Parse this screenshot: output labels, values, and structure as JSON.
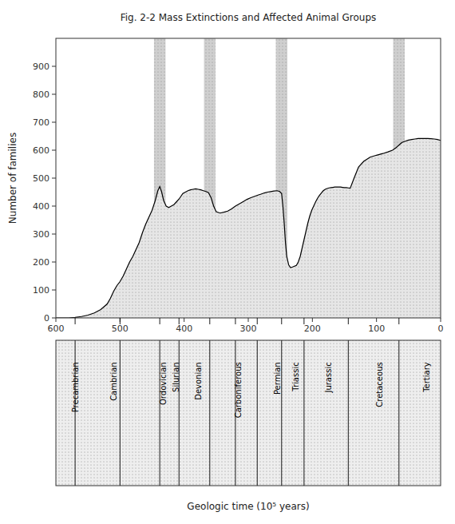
{
  "chart_data": {
    "type": "area",
    "title": "Fig. 2-2 Mass Extinctions and Affected Animal Groups",
    "x_label": "Geologic time (10⁵ years)",
    "y_label": "Number of families",
    "xlim": [
      600,
      0
    ],
    "ylim": [
      0,
      1000
    ],
    "yticks": [
      0,
      100,
      200,
      300,
      400,
      500,
      600,
      700,
      800,
      900
    ],
    "xticks": [
      600,
      500,
      400,
      300,
      200,
      100,
      0
    ],
    "color": "#000000",
    "x": [
      600,
      590,
      580,
      570,
      560,
      550,
      540,
      530,
      520,
      515,
      510,
      505,
      500,
      495,
      490,
      485,
      480,
      475,
      470,
      465,
      460,
      455,
      450,
      445,
      441,
      438,
      435,
      432,
      428,
      424,
      420,
      416,
      412,
      408,
      405,
      402,
      398,
      394,
      390,
      386,
      382,
      378,
      374,
      370,
      366,
      362,
      358,
      354,
      350,
      344,
      338,
      332,
      326,
      320,
      314,
      308,
      302,
      296,
      290,
      284,
      280,
      275,
      270,
      265,
      260,
      255,
      251,
      248,
      246,
      244,
      242,
      240,
      237,
      234,
      231,
      228,
      225,
      222,
      219,
      216,
      213,
      210,
      207,
      204,
      201,
      198,
      195,
      192,
      189,
      186,
      183,
      180,
      177,
      174,
      171,
      168,
      165,
      162,
      159,
      156,
      153,
      150,
      147,
      144,
      141,
      135,
      128,
      120,
      110,
      100,
      90,
      82,
      75,
      70,
      67,
      65,
      63,
      60,
      55,
      50,
      45,
      40,
      35,
      30,
      25,
      20,
      15,
      10,
      5,
      0
    ],
    "values": [
      0,
      0,
      0,
      2,
      5,
      10,
      18,
      30,
      50,
      70,
      95,
      115,
      130,
      150,
      175,
      200,
      220,
      245,
      270,
      305,
      335,
      360,
      385,
      420,
      455,
      470,
      450,
      420,
      400,
      395,
      400,
      405,
      415,
      425,
      435,
      445,
      450,
      455,
      458,
      460,
      462,
      460,
      458,
      455,
      452,
      448,
      430,
      400,
      380,
      375,
      378,
      382,
      390,
      400,
      408,
      416,
      424,
      430,
      435,
      440,
      443,
      447,
      450,
      452,
      454,
      455,
      452,
      445,
      400,
      340,
      270,
      220,
      190,
      180,
      182,
      185,
      188,
      200,
      220,
      250,
      280,
      310,
      340,
      365,
      385,
      400,
      415,
      428,
      438,
      447,
      455,
      460,
      463,
      465,
      466,
      467,
      468,
      468,
      468,
      468,
      467,
      466,
      466,
      465,
      464,
      500,
      540,
      560,
      575,
      582,
      588,
      594,
      600,
      608,
      614,
      618,
      622,
      628,
      632,
      636,
      638,
      640,
      642,
      642,
      642,
      642,
      641,
      640,
      638,
      635
    ],
    "period_labels": [
      {
        "name": "Precambrian",
        "x": 570
      },
      {
        "name": "Cambrian",
        "x": 510
      },
      {
        "name": "Ordovician",
        "x": 432
      },
      {
        "name": "Silurian",
        "x": 413
      },
      {
        "name": "Devonian",
        "x": 378
      },
      {
        "name": "Carboni­ferous",
        "x": 315
      },
      {
        "name": "Permian",
        "x": 255
      },
      {
        "name": "Triassic",
        "x": 226
      },
      {
        "name": "Jurassic",
        "x": 175
      },
      {
        "name": "Cretaceous",
        "x": 95
      },
      {
        "name": "Tertiary",
        "x": 22
      }
    ],
    "period_boundaries": [
      570,
      500,
      438,
      408,
      360,
      320,
      286,
      248,
      213,
      144,
      65
    ],
    "extinction_bands": [
      {
        "x_left": 429,
        "x_right": 447
      },
      {
        "x_left": 351,
        "x_right": 369
      },
      {
        "x_left": 239,
        "x_right": 257
      },
      {
        "x_left": 56,
        "x_right": 74
      }
    ]
  }
}
